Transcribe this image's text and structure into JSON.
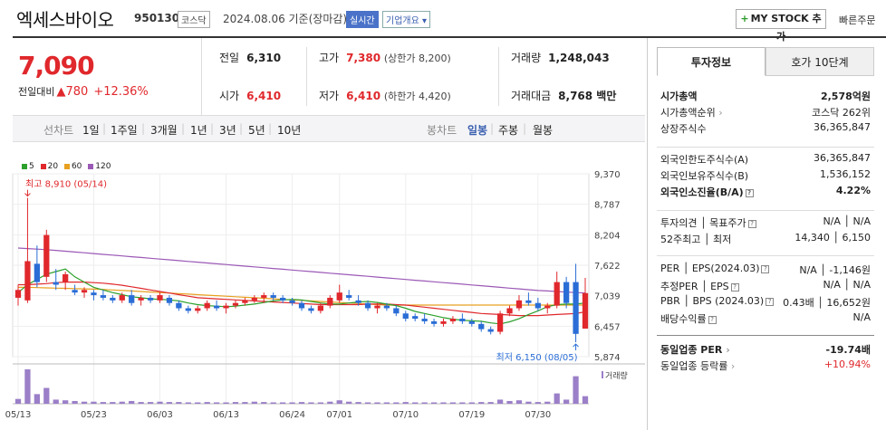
{
  "header": {
    "title": "엑세스바이오",
    "code": "950130",
    "market_tag": "코스닥",
    "date": "2024.08.06 기준(장마감)",
    "live_tag": "실시간",
    "info_tag": "기업개요 ▾",
    "mystock_button": "MY STOCK 추가",
    "mystock_plus": "+",
    "quick_order": "빠른주문"
  },
  "price": {
    "current": "7,090",
    "change_label": "전일대비",
    "change_arrow": "▲",
    "change_value": "780",
    "change_pct": "+12.36%"
  },
  "summary": {
    "prev_label": "전일",
    "prev_value": "6,310",
    "high_label": "고가",
    "high_value": "7,380",
    "high_limit": "(상한가 8,200)",
    "volume_label": "거래량",
    "volume_value": "1,248,043",
    "open_label": "시가",
    "open_value": "6,410",
    "low_label": "저가",
    "low_value": "6,410",
    "low_limit": "(하한가 4,420)",
    "amount_label": "거래대금",
    "amount_value": "8,768 백만"
  },
  "tabs": {
    "line_chart": "선차트",
    "periods": [
      "1일",
      "1주일",
      "3개월",
      "1년",
      "3년",
      "5년",
      "10년"
    ],
    "candle_chart": "봉차트",
    "candle_periods": [
      "일봉",
      "주봉",
      "월봉"
    ],
    "active_candle": "일봉"
  },
  "legend": [
    {
      "label": "5",
      "color": "#2ca02c"
    },
    {
      "label": "20",
      "color": "#e0282c"
    },
    {
      "label": "60",
      "color": "#e8a020"
    },
    {
      "label": "120",
      "color": "#9b59b6"
    }
  ],
  "chart_data": {
    "type": "candlestick",
    "y_ticks": [
      "9,370",
      "8,787",
      "8,204",
      "7,622",
      "7,039",
      "6,457",
      "5,874"
    ],
    "ylim": [
      5874,
      9370
    ],
    "x_labels": [
      "05/13",
      "05/23",
      "06/03",
      "06/13",
      "06/24",
      "07/01",
      "07/10",
      "07/19",
      "07/30"
    ],
    "x_label_index": [
      0,
      8,
      15,
      22,
      29,
      34,
      41,
      48,
      55
    ],
    "high_annotation": "최고 8,910 (05/14)",
    "low_annotation": "최저 6,150 (08/05)",
    "volume_label": "거래량",
    "candles": [
      {
        "o": 7000,
        "h": 7250,
        "l": 6850,
        "c": 7150
      },
      {
        "o": 6950,
        "h": 8910,
        "l": 6900,
        "c": 7700
      },
      {
        "o": 7650,
        "h": 8000,
        "l": 7200,
        "c": 7300
      },
      {
        "o": 7400,
        "h": 8300,
        "l": 7300,
        "c": 8200
      },
      {
        "o": 7300,
        "h": 7550,
        "l": 7150,
        "c": 7250
      },
      {
        "o": 7300,
        "h": 7500,
        "l": 7150,
        "c": 7450
      },
      {
        "o": 7150,
        "h": 7250,
        "l": 7050,
        "c": 7100
      },
      {
        "o": 7100,
        "h": 7200,
        "l": 7000,
        "c": 7150
      },
      {
        "o": 7100,
        "h": 7150,
        "l": 6950,
        "c": 7050
      },
      {
        "o": 7050,
        "h": 7150,
        "l": 6950,
        "c": 7000
      },
      {
        "o": 7000,
        "h": 7050,
        "l": 6900,
        "c": 6950
      },
      {
        "o": 6950,
        "h": 7100,
        "l": 6900,
        "c": 7050
      },
      {
        "o": 7050,
        "h": 7150,
        "l": 6850,
        "c": 6900
      },
      {
        "o": 6950,
        "h": 7050,
        "l": 6850,
        "c": 7000
      },
      {
        "o": 7000,
        "h": 7050,
        "l": 6900,
        "c": 6950
      },
      {
        "o": 6950,
        "h": 7100,
        "l": 6900,
        "c": 7050
      },
      {
        "o": 7000,
        "h": 7050,
        "l": 6850,
        "c": 6900
      },
      {
        "o": 6900,
        "h": 6950,
        "l": 6750,
        "c": 6800
      },
      {
        "o": 6800,
        "h": 6850,
        "l": 6700,
        "c": 6750
      },
      {
        "o": 6750,
        "h": 6850,
        "l": 6700,
        "c": 6800
      },
      {
        "o": 6800,
        "h": 6950,
        "l": 6750,
        "c": 6900
      },
      {
        "o": 6850,
        "h": 6950,
        "l": 6750,
        "c": 6800
      },
      {
        "o": 6800,
        "h": 6900,
        "l": 6700,
        "c": 6850
      },
      {
        "o": 6850,
        "h": 6950,
        "l": 6800,
        "c": 6900
      },
      {
        "o": 6900,
        "h": 7000,
        "l": 6850,
        "c": 6950
      },
      {
        "o": 6950,
        "h": 7050,
        "l": 6900,
        "c": 7000
      },
      {
        "o": 7000,
        "h": 7100,
        "l": 6900,
        "c": 7050
      },
      {
        "o": 7050,
        "h": 7100,
        "l": 6950,
        "c": 7000
      },
      {
        "o": 7000,
        "h": 7050,
        "l": 6900,
        "c": 6950
      },
      {
        "o": 6950,
        "h": 7000,
        "l": 6850,
        "c": 6900
      },
      {
        "o": 6900,
        "h": 6950,
        "l": 6750,
        "c": 6800
      },
      {
        "o": 6800,
        "h": 6850,
        "l": 6700,
        "c": 6750
      },
      {
        "o": 6750,
        "h": 6900,
        "l": 6700,
        "c": 6850
      },
      {
        "o": 6850,
        "h": 7050,
        "l": 6800,
        "c": 7000
      },
      {
        "o": 6950,
        "h": 7250,
        "l": 6900,
        "c": 7100
      },
      {
        "o": 7050,
        "h": 7150,
        "l": 6950,
        "c": 7000
      },
      {
        "o": 6950,
        "h": 7050,
        "l": 6850,
        "c": 6900
      },
      {
        "o": 6900,
        "h": 6950,
        "l": 6750,
        "c": 6800
      },
      {
        "o": 6800,
        "h": 6900,
        "l": 6700,
        "c": 6850
      },
      {
        "o": 6850,
        "h": 6900,
        "l": 6750,
        "c": 6800
      },
      {
        "o": 6800,
        "h": 6850,
        "l": 6650,
        "c": 6700
      },
      {
        "o": 6700,
        "h": 6750,
        "l": 6550,
        "c": 6600
      },
      {
        "o": 6650,
        "h": 6700,
        "l": 6550,
        "c": 6600
      },
      {
        "o": 6600,
        "h": 6700,
        "l": 6500,
        "c": 6550
      },
      {
        "o": 6550,
        "h": 6600,
        "l": 6450,
        "c": 6500
      },
      {
        "o": 6500,
        "h": 6600,
        "l": 6450,
        "c": 6550
      },
      {
        "o": 6550,
        "h": 6650,
        "l": 6500,
        "c": 6600
      },
      {
        "o": 6600,
        "h": 6700,
        "l": 6500,
        "c": 6550
      },
      {
        "o": 6550,
        "h": 6600,
        "l": 6450,
        "c": 6500
      },
      {
        "o": 6500,
        "h": 6550,
        "l": 6350,
        "c": 6400
      },
      {
        "o": 6400,
        "h": 6450,
        "l": 6300,
        "c": 6350
      },
      {
        "o": 6350,
        "h": 6750,
        "l": 6300,
        "c": 6700
      },
      {
        "o": 6700,
        "h": 6850,
        "l": 6650,
        "c": 6800
      },
      {
        "o": 6800,
        "h": 7050,
        "l": 6750,
        "c": 6950
      },
      {
        "o": 6950,
        "h": 7100,
        "l": 6850,
        "c": 6900
      },
      {
        "o": 6900,
        "h": 7000,
        "l": 6750,
        "c": 6800
      },
      {
        "o": 6800,
        "h": 6900,
        "l": 6700,
        "c": 6850
      },
      {
        "o": 6850,
        "h": 7500,
        "l": 6800,
        "c": 7300
      },
      {
        "o": 7300,
        "h": 7400,
        "l": 6800,
        "c": 6900
      },
      {
        "o": 7300,
        "h": 7650,
        "l": 6150,
        "c": 6310
      },
      {
        "o": 6410,
        "h": 7380,
        "l": 6410,
        "c": 7090
      }
    ],
    "volumes": [
      14,
      100,
      28,
      46,
      12,
      10,
      8,
      6,
      6,
      5,
      5,
      6,
      8,
      5,
      5,
      6,
      5,
      5,
      4,
      4,
      5,
      4,
      4,
      5,
      5,
      6,
      5,
      4,
      4,
      4,
      5,
      4,
      4,
      6,
      10,
      6,
      5,
      4,
      4,
      4,
      4,
      5,
      4,
      4,
      4,
      4,
      4,
      4,
      4,
      5,
      5,
      12,
      8,
      10,
      6,
      5,
      6,
      30,
      12,
      80,
      22
    ],
    "ma5": [
      7100,
      7250,
      7350,
      7450,
      7500,
      7550,
      7400,
      7300,
      7200,
      7150,
      7100,
      7060,
      7020,
      7000,
      6980,
      6970,
      6960,
      6940,
      6900,
      6870,
      6850,
      6840,
      6830,
      6840,
      6860,
      6880,
      6910,
      6940,
      6960,
      6970,
      6960,
      6930,
      6900,
      6880,
      6880,
      6900,
      6920,
      6930,
      6910,
      6880,
      6850,
      6800,
      6740,
      6700,
      6660,
      6620,
      6590,
      6570,
      6560,
      6550,
      6520,
      6500,
      6540,
      6600,
      6680,
      6750,
      6830,
      6870,
      6880,
      6880,
      6900
    ],
    "ma20": [
      7250,
      7250,
      7260,
      7270,
      7290,
      7300,
      7300,
      7300,
      7290,
      7280,
      7260,
      7240,
      7210,
      7180,
      7150,
      7120,
      7090,
      7060,
      7030,
      7000,
      6990,
      6980,
      6970,
      6960,
      6950,
      6940,
      6930,
      6920,
      6910,
      6900,
      6890,
      6880,
      6870,
      6870,
      6870,
      6870,
      6870,
      6880,
      6880,
      6880,
      6870,
      6860,
      6840,
      6820,
      6800,
      6780,
      6760,
      6740,
      6720,
      6700,
      6690,
      6680,
      6670,
      6660,
      6660,
      6660,
      6670,
      6680,
      6690,
      6700,
      6730
    ],
    "ma60": [
      7200,
      7200,
      7195,
      7190,
      7185,
      7180,
      7175,
      7170,
      7165,
      7160,
      7150,
      7140,
      7130,
      7120,
      7110,
      7100,
      7090,
      7080,
      7070,
      7060,
      7050,
      7040,
      7030,
      7020,
      7010,
      7000,
      6990,
      6980,
      6970,
      6960,
      6950,
      6940,
      6930,
      6920,
      6910,
      6900,
      6890,
      6880,
      6870,
      6860,
      6860,
      6860,
      6860,
      6860,
      6860,
      6860,
      6860,
      6860,
      6860,
      6860,
      6860,
      6860,
      6860,
      6860,
      6860,
      6860,
      6860,
      6860,
      6860,
      6860,
      6860
    ],
    "ma120": [
      7950,
      7940,
      7930,
      7920,
      7905,
      7890,
      7875,
      7860,
      7845,
      7830,
      7815,
      7800,
      7785,
      7770,
      7755,
      7740,
      7725,
      7710,
      7695,
      7680,
      7665,
      7650,
      7635,
      7620,
      7605,
      7590,
      7575,
      7560,
      7545,
      7530,
      7515,
      7500,
      7485,
      7470,
      7455,
      7440,
      7425,
      7410,
      7395,
      7380,
      7365,
      7350,
      7335,
      7320,
      7305,
      7290,
      7275,
      7260,
      7245,
      7230,
      7215,
      7200,
      7185,
      7170,
      7155,
      7140,
      7130,
      7120,
      7110,
      7100,
      7090
    ]
  },
  "right_panel": {
    "tab_invest": "투자정보",
    "tab_hoga": "호가 10단계",
    "rows1": [
      {
        "k": "시가총액",
        "v": "2,578억원",
        "bold": true
      },
      {
        "k": "시가총액순위",
        "v": "코스닥 262위",
        "arrow": true
      },
      {
        "k": "상장주식수",
        "v": "36,365,847"
      }
    ],
    "rows2": [
      {
        "k": "외국인한도주식수(A)",
        "v": "36,365,847"
      },
      {
        "k": "외국인보유주식수(B)",
        "v": "1,536,152"
      },
      {
        "k": "외국인소진율(B/A)",
        "v": "4.22%",
        "bold": true,
        "q": true
      }
    ],
    "rows3": [
      {
        "k": "투자의견 │ 목표주가",
        "v": "N/A │ N/A",
        "q": true
      },
      {
        "k": "52주최고 │ 최저",
        "v": "14,340 │ 6,150"
      }
    ],
    "rows4": [
      {
        "k": "PER │ EPS(2024.03)",
        "v": "N/A │ -1,146원",
        "q": true
      },
      {
        "k": "추정PER │ EPS",
        "v": "N/A │ N/A",
        "q": true
      },
      {
        "k": "PBR │ BPS (2024.03)",
        "v": "0.43배 │ 16,652원",
        "q": true
      },
      {
        "k": "배당수익률",
        "v": "N/A",
        "q": true
      }
    ],
    "rows5": [
      {
        "k": "동일업종 PER",
        "v": "-19.74배",
        "bold": true,
        "arrow": true
      },
      {
        "k": "동일업종 등락률",
        "v": "+10.94%",
        "red": true,
        "arrow": true
      }
    ]
  }
}
